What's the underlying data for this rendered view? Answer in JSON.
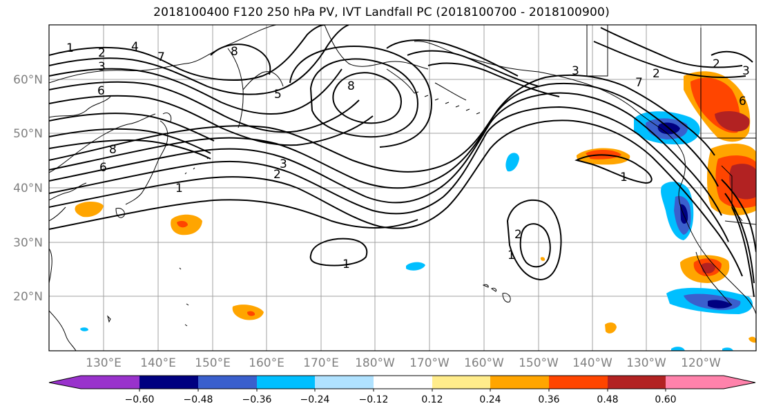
{
  "title": "2018100400 F120 250 hPa PV, IVT Landfall PC (2018100700 - 2018100900)",
  "map": {
    "lat_labels": [
      "60°N",
      "50°N",
      "40°N",
      "30°N",
      "20°N"
    ],
    "lon_labels": [
      "130°E",
      "140°E",
      "150°E",
      "160°E",
      "170°E",
      "180°W",
      "170°W",
      "160°W",
      "150°W",
      "140°W",
      "130°W",
      "120°W"
    ],
    "contour_labels": [
      "1",
      "2",
      "3",
      "4",
      "7",
      "8",
      "8",
      "6",
      "8",
      "6",
      "3",
      "2",
      "1",
      "1",
      "2",
      "1",
      "7",
      "1",
      "2",
      "3",
      "3",
      "2",
      "6",
      "5"
    ],
    "fill_palette": {
      "purple": "#9932cc",
      "navy": "#000080",
      "blue": "#3a5fcd",
      "sky": "#00bfff",
      "light_blue": "#b0e2ff",
      "white": "#ffffff",
      "yellow": "#ffec8b",
      "orange": "#ffa500",
      "orange_red": "#ff4500",
      "firebrick": "#b22222",
      "pink": "#ff82ab"
    }
  },
  "colorbar": {
    "tick_labels": [
      "−0.60",
      "−0.48",
      "−0.36",
      "−0.24",
      "−0.12",
      "0.12",
      "0.24",
      "0.36",
      "0.48",
      "0.60"
    ],
    "colors": [
      "#9932cc",
      "#000080",
      "#3a5fcd",
      "#00bfff",
      "#b0e2ff",
      "#ffffff",
      "#ffec8b",
      "#ffa500",
      "#ff4500",
      "#b22222",
      "#ff82ab"
    ]
  }
}
